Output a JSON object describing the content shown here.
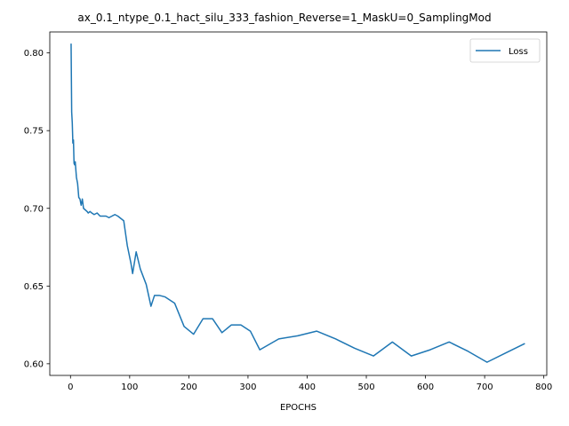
{
  "chart_data": {
    "type": "line",
    "title": "ax_0.1_ntype_0.1_hact_silu_333_fashion_Reverse=1_MaskU=0_SamplingMod",
    "xlabel": "EPOCHS",
    "ylabel": "",
    "xlim": [
      -35,
      805
    ],
    "ylim": [
      0.5925,
      0.8135
    ],
    "xticks": [
      0,
      100,
      200,
      300,
      400,
      500,
      600,
      700,
      800
    ],
    "yticks": [
      0.6,
      0.65,
      0.7,
      0.75,
      0.8
    ],
    "legend_position": "top-right",
    "series": [
      {
        "name": "Loss",
        "color": "#1f77b4",
        "x": [
          1,
          2,
          3,
          4,
          5,
          6,
          7,
          8,
          10,
          12,
          14,
          16,
          18,
          20,
          22,
          25,
          28,
          30,
          33,
          36,
          40,
          45,
          50,
          55,
          60,
          65,
          70,
          75,
          80,
          90,
          96,
          102,
          105,
          111,
          118,
          128,
          136,
          142,
          150,
          160,
          176,
          192,
          208,
          224,
          240,
          256,
          272,
          288,
          304,
          320,
          352,
          384,
          416,
          448,
          480,
          512,
          544,
          576,
          608,
          640,
          672,
          704,
          736,
          768
        ],
        "values": [
          0.806,
          0.762,
          0.755,
          0.742,
          0.744,
          0.729,
          0.728,
          0.73,
          0.72,
          0.716,
          0.707,
          0.706,
          0.702,
          0.706,
          0.7,
          0.699,
          0.698,
          0.697,
          0.698,
          0.697,
          0.696,
          0.697,
          0.695,
          0.695,
          0.695,
          0.694,
          0.695,
          0.696,
          0.695,
          0.692,
          0.676,
          0.665,
          0.658,
          0.672,
          0.661,
          0.651,
          0.637,
          0.644,
          0.644,
          0.643,
          0.639,
          0.624,
          0.619,
          0.629,
          0.629,
          0.62,
          0.625,
          0.625,
          0.621,
          0.609,
          0.616,
          0.618,
          0.621,
          0.616,
          0.61,
          0.605,
          0.614,
          0.605,
          0.609,
          0.614,
          0.608,
          0.601,
          0.607,
          0.613
        ]
      }
    ]
  }
}
